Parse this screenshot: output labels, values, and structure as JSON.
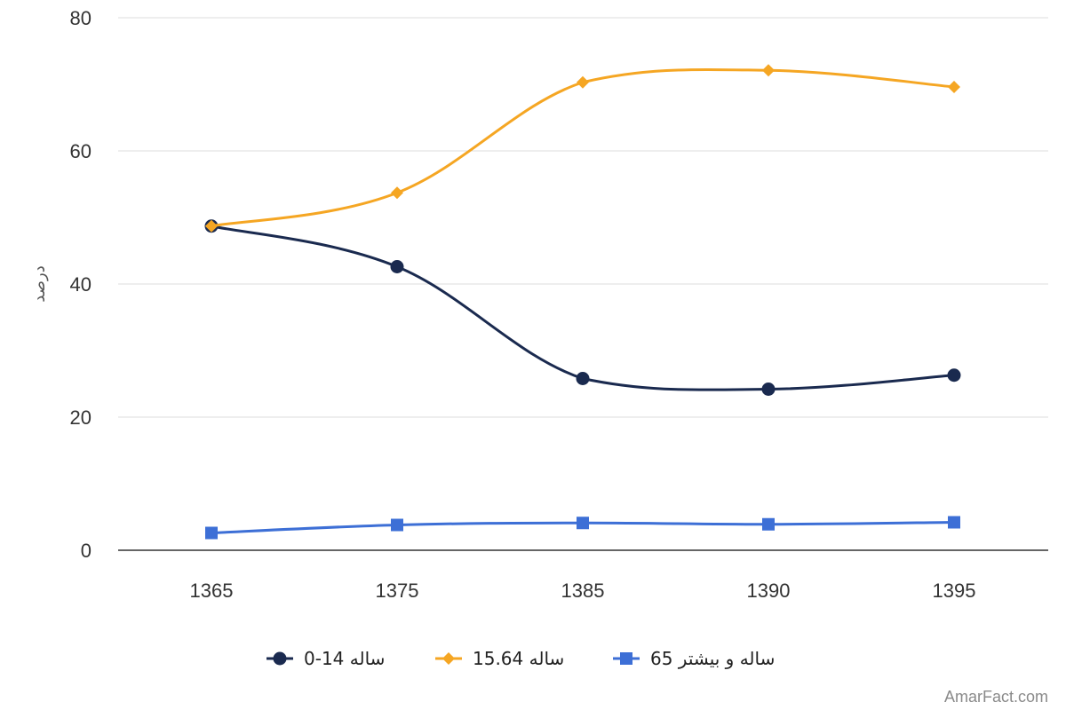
{
  "chart_data": {
    "type": "line",
    "x": [
      "1365",
      "1375",
      "1385",
      "1390",
      "1395"
    ],
    "series": [
      {
        "name": "ساله 14-0",
        "color": "#1a2a4f",
        "marker": "circle",
        "values": [
          48.7,
          42.6,
          25.8,
          24.2,
          26.3
        ]
      },
      {
        "name": "ساله 15.64",
        "color": "#f5a623",
        "marker": "diamond",
        "values": [
          48.7,
          53.7,
          70.3,
          72.1,
          69.6
        ]
      },
      {
        "name": "ساله و بیشتر 65",
        "color": "#3d6fd6",
        "marker": "square",
        "values": [
          2.6,
          3.8,
          4.1,
          3.9,
          4.2
        ]
      }
    ],
    "ylabel": "درصد",
    "xlabel": "",
    "ylim": [
      0,
      80
    ],
    "yticks": [
      "0",
      "20",
      "40",
      "60",
      "80"
    ],
    "grid": true,
    "legend_position": "bottom",
    "smooth": true
  },
  "watermark": "AmarFact.com"
}
